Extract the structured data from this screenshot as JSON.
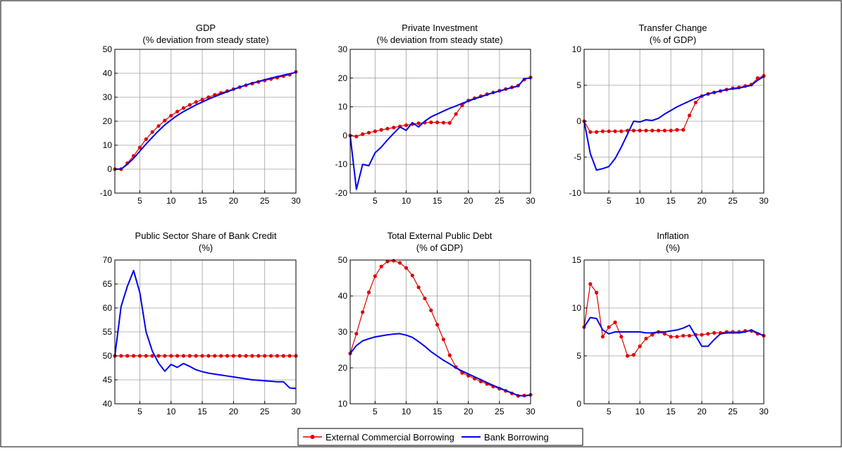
{
  "colors": {
    "ecb": "#e00000",
    "bank": "#0000ee",
    "grid": "#a0a0a0",
    "frame": "#000000"
  },
  "legend": {
    "location": "bottom-center",
    "entries": [
      {
        "label": "External Commercial Borrowing",
        "series": "ecb",
        "marker": "dot"
      },
      {
        "label": "Bank Borrowing",
        "series": "bank",
        "marker": "none"
      }
    ]
  },
  "chart_data": [
    {
      "type": "line",
      "title": "GDP",
      "subtitle": "(% deviation from steady state)",
      "xlim": [
        1,
        30
      ],
      "xticks": [
        5,
        10,
        15,
        20,
        25,
        30
      ],
      "ylim": [
        -10,
        50
      ],
      "yticks": [
        -10,
        0,
        10,
        20,
        30,
        40,
        50
      ],
      "grid": true,
      "series": [
        {
          "key": "ecb",
          "name": "External Commercial Borrowing",
          "marker": "dot",
          "values": [
            0,
            0,
            2.5,
            5.5,
            9,
            12.5,
            15.5,
            18,
            20.3,
            22.3,
            24,
            25.5,
            26.8,
            28,
            29,
            30,
            31,
            31.8,
            32.6,
            33.4,
            34.2,
            35,
            35.7,
            36.4,
            37,
            37.6,
            38.2,
            38.8,
            39.4,
            40.6
          ]
        },
        {
          "key": "bank",
          "name": "Bank Borrowing",
          "marker": "none",
          "values": [
            0,
            0,
            2,
            4.5,
            7.5,
            10.5,
            13.3,
            16,
            18.5,
            20.5,
            22.4,
            24,
            25.4,
            26.8,
            28,
            29.2,
            30.3,
            31.3,
            32.3,
            33.3,
            34.2,
            35.1,
            35.9,
            36.6,
            37.3,
            38,
            38.6,
            39.2,
            39.8,
            40.4
          ]
        }
      ]
    },
    {
      "type": "line",
      "title": "Private Investment",
      "subtitle": "(% deviation from steady state)",
      "xlim": [
        1,
        30
      ],
      "xticks": [
        5,
        10,
        15,
        20,
        25,
        30
      ],
      "ylim": [
        -20,
        30
      ],
      "yticks": [
        -20,
        -10,
        0,
        10,
        20,
        30
      ],
      "grid": true,
      "series": [
        {
          "key": "ecb",
          "name": "External Commercial Borrowing",
          "marker": "dot",
          "values": [
            0,
            -0.3,
            0.5,
            1,
            1.5,
            2,
            2.4,
            2.8,
            3.2,
            3.6,
            4,
            4.3,
            4.5,
            4.6,
            4.6,
            4.5,
            4.4,
            7.5,
            10.5,
            12.2,
            13,
            13.7,
            14.4,
            15,
            15.6,
            16.2,
            16.8,
            17.4,
            19.5,
            20.2
          ]
        },
        {
          "key": "bank",
          "name": "Bank Borrowing",
          "marker": "none",
          "values": [
            0,
            -18.7,
            -10,
            -10.5,
            -6,
            -4,
            -1.5,
            0.8,
            3,
            1.8,
            4.5,
            3,
            5,
            6.5,
            7.5,
            8.5,
            9.5,
            10.3,
            11.2,
            12,
            12.8,
            13.5,
            14.2,
            14.9,
            15.5,
            16.1,
            16.7,
            17.2,
            19.8,
            20
          ]
        }
      ]
    },
    {
      "type": "line",
      "title": "Transfer Change",
      "subtitle": "(% of GDP)",
      "xlim": [
        1,
        30
      ],
      "xticks": [
        5,
        10,
        15,
        20,
        25,
        30
      ],
      "ylim": [
        -10,
        10
      ],
      "yticks": [
        -10,
        -5,
        0,
        5,
        10
      ],
      "grid": true,
      "series": [
        {
          "key": "ecb",
          "name": "External Commercial Borrowing",
          "marker": "dot",
          "values": [
            0,
            -1.5,
            -1.5,
            -1.4,
            -1.4,
            -1.4,
            -1.4,
            -1.3,
            -1.3,
            -1.3,
            -1.3,
            -1.3,
            -1.3,
            -1.3,
            -1.3,
            -1.2,
            -1.2,
            0.8,
            2.6,
            3.5,
            3.8,
            4,
            4.2,
            4.4,
            4.6,
            4.7,
            4.9,
            5.1,
            6,
            6.3
          ]
        },
        {
          "key": "bank",
          "name": "Bank Borrowing",
          "marker": "none",
          "values": [
            0,
            -4.5,
            -6.8,
            -6.6,
            -6.3,
            -5.2,
            -3.6,
            -1.8,
            0,
            -0.1,
            0.2,
            0.1,
            0.4,
            1,
            1.5,
            2,
            2.4,
            2.8,
            3.2,
            3.5,
            3.8,
            4,
            4.2,
            4.4,
            4.5,
            4.6,
            4.8,
            5,
            5.7,
            6.2
          ]
        }
      ]
    },
    {
      "type": "line",
      "title": "Public Sector Share of Bank Credit",
      "subtitle": "(%)",
      "xlim": [
        1,
        30
      ],
      "xticks": [
        5,
        10,
        15,
        20,
        25,
        30
      ],
      "ylim": [
        40,
        70
      ],
      "yticks": [
        40,
        45,
        50,
        55,
        60,
        65,
        70
      ],
      "grid": true,
      "series": [
        {
          "key": "ecb",
          "name": "External Commercial Borrowing",
          "marker": "dot",
          "values": [
            50,
            50,
            50,
            50,
            50,
            50,
            50,
            50,
            50,
            50,
            50,
            50,
            50,
            50,
            50,
            50,
            50,
            50,
            50,
            50,
            50,
            50,
            50,
            50,
            50,
            50,
            50,
            50,
            50,
            50
          ]
        },
        {
          "key": "bank",
          "name": "Bank Borrowing",
          "marker": "none",
          "values": [
            50,
            60.3,
            64.5,
            67.8,
            63.2,
            55,
            51,
            48.5,
            46.8,
            48.2,
            47.6,
            48.4,
            47.8,
            47.1,
            46.7,
            46.4,
            46.2,
            46,
            45.8,
            45.6,
            45.4,
            45.2,
            45,
            44.9,
            44.8,
            44.7,
            44.6,
            44.6,
            43.3,
            43.2
          ]
        }
      ]
    },
    {
      "type": "line",
      "title": "Total External Public Debt",
      "subtitle": "(% of GDP)",
      "xlim": [
        1,
        30
      ],
      "xticks": [
        5,
        10,
        15,
        20,
        25,
        30
      ],
      "ylim": [
        10,
        50
      ],
      "yticks": [
        10,
        20,
        30,
        40,
        50
      ],
      "grid": true,
      "series": [
        {
          "key": "ecb",
          "name": "External Commercial Borrowing",
          "marker": "dot",
          "values": [
            24,
            29.5,
            35.5,
            41,
            45.5,
            48.2,
            49.6,
            49.8,
            49.2,
            47.8,
            45.7,
            42.4,
            39.3,
            36,
            32,
            27.9,
            23.5,
            20.2,
            18.6,
            17.8,
            17,
            16.2,
            15.5,
            14.8,
            14.2,
            13.6,
            12.9,
            12.2,
            12.3,
            12.5
          ]
        },
        {
          "key": "bank",
          "name": "Bank Borrowing",
          "marker": "none",
          "values": [
            24,
            26.2,
            27.5,
            28.1,
            28.6,
            28.9,
            29.2,
            29.4,
            29.5,
            29.1,
            28.5,
            27.3,
            26,
            24.5,
            23.3,
            22.1,
            21.1,
            20,
            19.1,
            18.3,
            17.5,
            16.7,
            15.9,
            15.1,
            14.4,
            13.7,
            13,
            12.3,
            12.2,
            12.4
          ]
        }
      ]
    },
    {
      "type": "line",
      "title": "Inflation",
      "subtitle": "(%)",
      "xlim": [
        1,
        30
      ],
      "xticks": [
        5,
        10,
        15,
        20,
        25,
        30
      ],
      "ylim": [
        0,
        15
      ],
      "yticks": [
        0,
        5,
        10,
        15
      ],
      "grid": true,
      "series": [
        {
          "key": "ecb",
          "name": "External Commercial Borrowing",
          "marker": "dot",
          "values": [
            8,
            12.5,
            11.6,
            7,
            8,
            8.5,
            7,
            5,
            5.1,
            6,
            6.8,
            7.2,
            7.5,
            7.3,
            7,
            7,
            7.1,
            7.1,
            7.2,
            7.2,
            7.3,
            7.4,
            7.4,
            7.5,
            7.5,
            7.5,
            7.6,
            7.6,
            7.3,
            7.1
          ]
        },
        {
          "key": "bank",
          "name": "Bank Borrowing",
          "marker": "none",
          "values": [
            8,
            9,
            8.9,
            7.7,
            7.3,
            7.5,
            7.5,
            7.5,
            7.5,
            7.5,
            7.4,
            7.4,
            7.5,
            7.5,
            7.6,
            7.7,
            7.9,
            8.2,
            7.1,
            6,
            6,
            6.7,
            7.3,
            7.4,
            7.4,
            7.4,
            7.5,
            7.7,
            7.4,
            7.1
          ]
        }
      ]
    }
  ]
}
